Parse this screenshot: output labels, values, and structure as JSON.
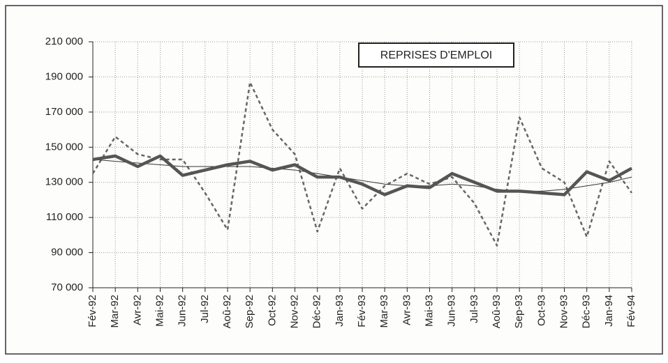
{
  "chart_data": {
    "type": "line",
    "title": "REPRISES D'EMPLOI",
    "categories": [
      "Fév-92",
      "Mar-92",
      "Avr-92",
      "Mai-92",
      "Jun-92",
      "Jul-92",
      "Aoû-92",
      "Sep-92",
      "Oct-92",
      "Nov-92",
      "Déc-92",
      "Jan-93",
      "Fév-93",
      "Mar-93",
      "Avr-93",
      "Mai-93",
      "Jun-93",
      "Jul-93",
      "Aoû-93",
      "Sep-93",
      "Oct-93",
      "Nov-93",
      "Déc-93",
      "Jan-94",
      "Fév-94"
    ],
    "series": [
      {
        "color": "#666666",
        "dashed": true,
        "width": 2.5,
        "values": [
          135000,
          156000,
          146000,
          143000,
          143000,
          124000,
          103000,
          187000,
          160000,
          146000,
          102000,
          138000,
          115000,
          128000,
          135000,
          129000,
          133000,
          118000,
          94000,
          167000,
          138000,
          130000,
          99000,
          142000,
          124000
        ]
      },
      {
        "color": "#333333",
        "dashed": false,
        "width": 1,
        "values": [
          143000,
          142000,
          141000,
          140000,
          139000,
          139000,
          139000,
          139000,
          138000,
          137000,
          135000,
          133000,
          131000,
          129000,
          128000,
          128000,
          129000,
          128000,
          126000,
          125000,
          125000,
          126000,
          128000,
          130000,
          133000
        ]
      },
      {
        "color": "#555555",
        "dashed": false,
        "width": 4.5,
        "values": [
          143000,
          145000,
          139000,
          145000,
          134000,
          137000,
          140000,
          142000,
          137000,
          140000,
          133000,
          133000,
          129000,
          123000,
          128000,
          127000,
          135000,
          130000,
          125000,
          125000,
          124000,
          123000,
          136000,
          131000,
          138000
        ]
      }
    ],
    "ylim": [
      70000,
      210000
    ],
    "yticks": [
      {
        "value": 70000,
        "label": "70 000"
      },
      {
        "value": 90000,
        "label": "90 000"
      },
      {
        "value": 110000,
        "label": "110 000"
      },
      {
        "value": 130000,
        "label": "130 000"
      },
      {
        "value": 150000,
        "label": "150 000"
      },
      {
        "value": 170000,
        "label": "170 000"
      },
      {
        "value": 190000,
        "label": "190 000"
      },
      {
        "value": 210000,
        "label": "210 000"
      }
    ],
    "grid": true
  }
}
